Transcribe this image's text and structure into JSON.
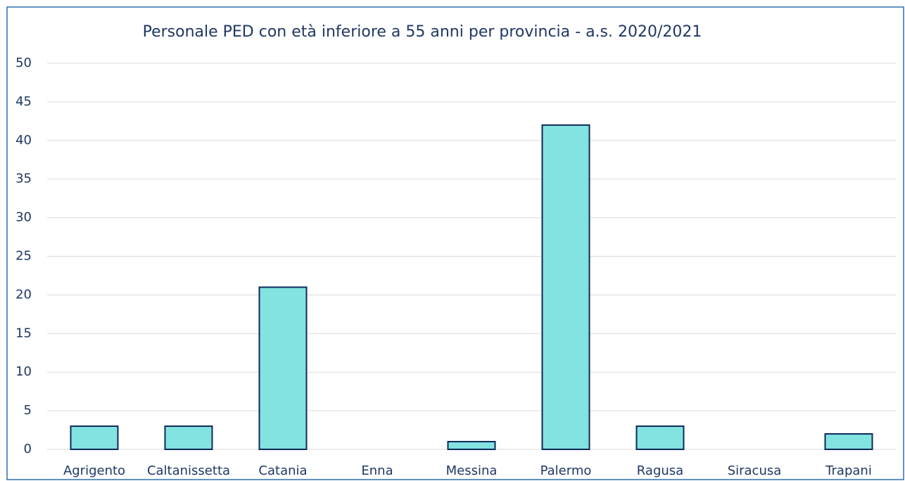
{
  "chart_data": {
    "type": "bar",
    "title": "Personale PED con età inferiore a 55 anni per provincia - a.s. 2020/2021",
    "categories": [
      "Agrigento",
      "Caltanissetta",
      "Catania",
      "Enna",
      "Messina",
      "Palermo",
      "Ragusa",
      "Siracusa",
      "Trapani"
    ],
    "values": [
      3,
      3,
      21,
      0,
      1,
      42,
      3,
      0,
      2
    ],
    "color": "#83e3e0",
    "ylim": [
      0,
      50
    ],
    "yticks": [
      0,
      5,
      10,
      15,
      20,
      25,
      30,
      35,
      40,
      45,
      50
    ],
    "grid": true
  }
}
